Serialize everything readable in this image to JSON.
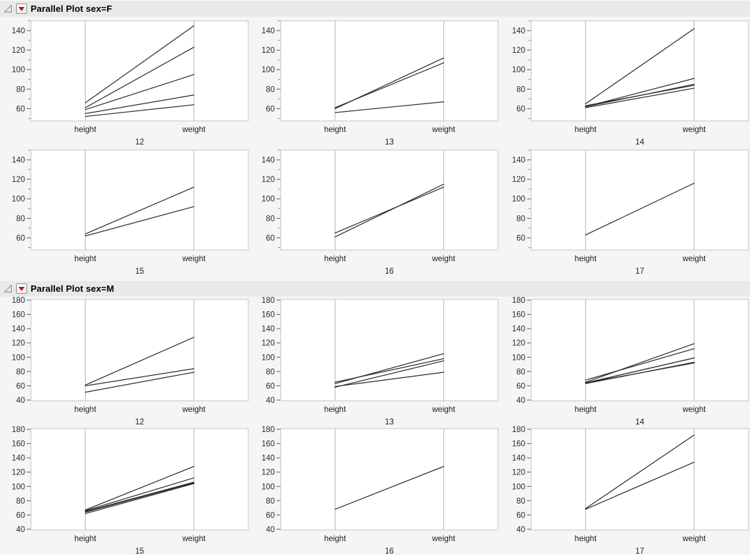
{
  "icons": {
    "disclosure_open": "open-outline-triangle",
    "red_triangle_menu": "red-triangle-down"
  },
  "colors": {
    "page_bg": "#f5f5f5",
    "header_bg": "#e9e9e9",
    "frame_border": "#c6c6c6",
    "axis_column_line": "#b5b5b5",
    "data_line": "#2a2a2a",
    "tick_major": "#5a5a5a",
    "tick_minor": "#8f8f8f",
    "tick_label": "#2b2b2b",
    "category_label": "#1a1a1a",
    "red_triangle": "#cc1111",
    "plot_bg": "#ffffff"
  },
  "chart_data": [
    {
      "type": "line",
      "subtype": "parallel-coordinates",
      "title": "Parallel Plot sex=F",
      "categories": [
        "height",
        "weight"
      ],
      "ylim": [
        47.5,
        150
      ],
      "yticks": [
        60,
        80,
        100,
        120,
        140
      ],
      "minor_ticks": [
        50,
        70,
        90,
        110,
        130,
        150
      ],
      "grid": false,
      "legend": "none",
      "panels": [
        {
          "label": "12",
          "lines": [
            [
              66,
              145
            ],
            [
              61,
              123
            ],
            [
              59,
              95
            ],
            [
              55,
              74
            ],
            [
              52,
              64
            ]
          ]
        },
        {
          "label": "13",
          "lines": [
            [
              60,
              112
            ],
            [
              61,
              107
            ],
            [
              56,
              67
            ]
          ]
        },
        {
          "label": "14",
          "lines": [
            [
              65,
              142
            ],
            [
              62,
              91
            ],
            [
              62,
              85
            ],
            [
              63,
              84
            ],
            [
              61,
              81
            ]
          ]
        },
        {
          "label": "15",
          "lines": [
            [
              64,
              112
            ],
            [
              62,
              92
            ]
          ]
        },
        {
          "label": "16",
          "lines": [
            [
              65,
              112
            ],
            [
              61,
              115
            ]
          ]
        },
        {
          "label": "17",
          "lines": [
            [
              63,
              116
            ]
          ]
        }
      ]
    },
    {
      "type": "line",
      "subtype": "parallel-coordinates",
      "title": "Parallel Plot sex=M",
      "categories": [
        "height",
        "weight"
      ],
      "ylim": [
        39,
        181
      ],
      "yticks": [
        40,
        60,
        80,
        100,
        120,
        140,
        160,
        180
      ],
      "minor_ticks": [],
      "grid": false,
      "legend": "none",
      "panels": [
        {
          "label": "12",
          "lines": [
            [
              61,
              128
            ],
            [
              60,
              84
            ],
            [
              51,
              79
            ]
          ]
        },
        {
          "label": "13",
          "lines": [
            [
              63,
              105
            ],
            [
              65,
              98
            ],
            [
              58,
              95
            ],
            [
              59,
              79
            ]
          ]
        },
        {
          "label": "14",
          "lines": [
            [
              65,
              119
            ],
            [
              68,
              112
            ],
            [
              64,
              99
            ],
            [
              64,
              99
            ],
            [
              64,
              92
            ],
            [
              63,
              93
            ]
          ]
        },
        {
          "label": "15",
          "lines": [
            [
              67,
              128
            ],
            [
              66,
              112
            ],
            [
              65,
              106
            ],
            [
              64,
              105
            ],
            [
              62,
              104
            ]
          ]
        },
        {
          "label": "16",
          "lines": [
            [
              68,
              128
            ]
          ]
        },
        {
          "label": "17",
          "lines": [
            [
              69,
              172
            ],
            [
              68,
              134
            ]
          ]
        }
      ]
    }
  ]
}
